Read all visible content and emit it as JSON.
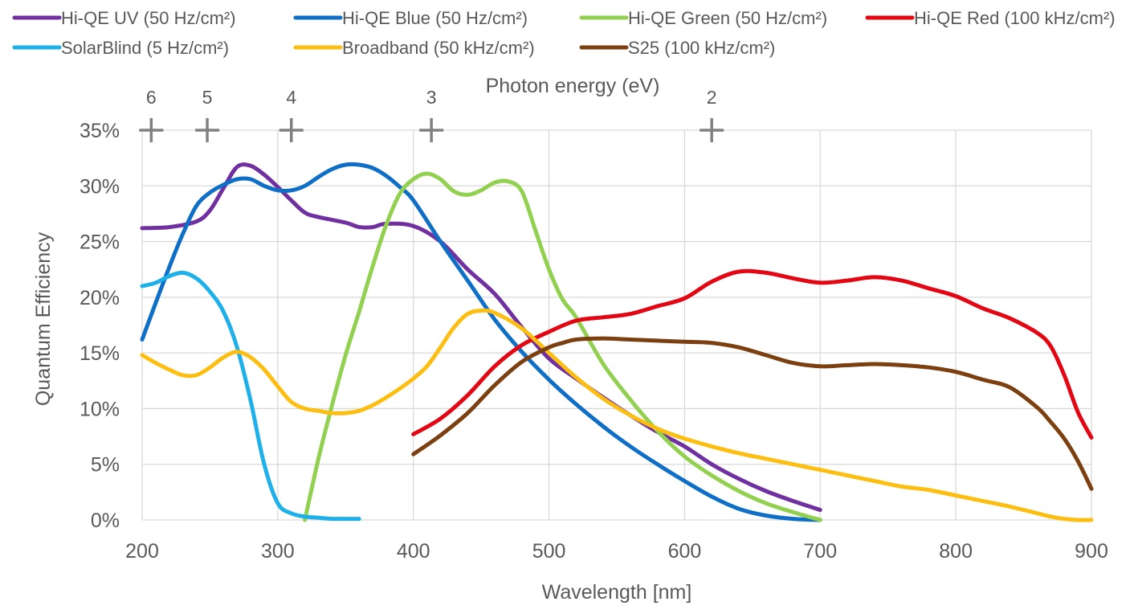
{
  "chart_data": {
    "type": "line",
    "xlabel": "Wavelength [nm]",
    "ylabel": "Quantum Efficiency",
    "top_axis_label": "Photon energy (eV)",
    "xlim": [
      200,
      900
    ],
    "ylim": [
      0,
      35
    ],
    "x_ticks": [
      200,
      300,
      400,
      500,
      600,
      700,
      800,
      900
    ],
    "x_tick_labels": [
      "200",
      "300",
      "400",
      "500",
      "600",
      "700",
      "800",
      "900"
    ],
    "y_ticks": [
      0,
      5,
      10,
      15,
      20,
      25,
      30,
      35
    ],
    "y_tick_labels": [
      "0%",
      "5%",
      "10%",
      "15%",
      "20%",
      "25%",
      "30%",
      "35%"
    ],
    "top_ticks": [
      {
        "label": "6",
        "ev": 6,
        "wavelength": 206.7
      },
      {
        "label": "5",
        "ev": 5,
        "wavelength": 248.0
      },
      {
        "label": "4",
        "ev": 4,
        "wavelength": 310.0
      },
      {
        "label": "3",
        "ev": 3,
        "wavelength": 413.3
      },
      {
        "label": "2",
        "ev": 2,
        "wavelength": 620.0
      }
    ],
    "grid": true,
    "legend_position": "top",
    "series": [
      {
        "name": "Hi-QE UV (50 Hz/cm²)",
        "color": "#7030A0",
        "x": [
          200,
          220,
          240,
          250,
          260,
          270,
          280,
          290,
          300,
          310,
          320,
          330,
          350,
          360,
          370,
          380,
          400,
          420,
          440,
          460,
          480,
          500,
          520,
          540,
          560,
          580,
          600,
          620,
          640,
          660,
          680,
          700
        ],
        "y": [
          26.2,
          26.3,
          26.8,
          27.8,
          29.8,
          31.7,
          31.8,
          31.0,
          29.9,
          28.7,
          27.6,
          27.2,
          26.7,
          26.3,
          26.3,
          26.6,
          26.4,
          25.0,
          22.5,
          20.3,
          17.3,
          14.5,
          12.7,
          11.0,
          9.4,
          7.9,
          6.6,
          5.0,
          3.7,
          2.6,
          1.7,
          0.9
        ]
      },
      {
        "name": "Hi-QE Blue (50 Hz/cm²)",
        "color": "#0F6FC6",
        "x": [
          200,
          210,
          220,
          230,
          240,
          250,
          260,
          270,
          280,
          290,
          300,
          310,
          320,
          330,
          340,
          350,
          360,
          370,
          380,
          390,
          400,
          420,
          440,
          460,
          480,
          500,
          520,
          540,
          560,
          580,
          600,
          620,
          640,
          660,
          680,
          700
        ],
        "y": [
          16.2,
          19.5,
          22.7,
          25.7,
          28.2,
          29.4,
          30.1,
          30.6,
          30.6,
          30.0,
          29.6,
          29.6,
          30.0,
          30.8,
          31.5,
          31.9,
          31.9,
          31.6,
          30.9,
          29.9,
          28.7,
          25.0,
          21.5,
          18.0,
          15.1,
          12.6,
          10.4,
          8.4,
          6.6,
          5.0,
          3.5,
          2.1,
          1.0,
          0.4,
          0.1,
          0.0
        ]
      },
      {
        "name": "Hi-QE Green (50 Hz/cm²)",
        "color": "#92D050",
        "x": [
          320,
          330,
          340,
          350,
          360,
          370,
          380,
          390,
          400,
          410,
          420,
          430,
          440,
          450,
          460,
          470,
          480,
          490,
          500,
          510,
          520,
          540,
          560,
          580,
          600,
          620,
          640,
          660,
          680,
          700
        ],
        "y": [
          0.0,
          5.5,
          10.3,
          14.8,
          18.7,
          22.8,
          26.5,
          29.3,
          30.6,
          31.1,
          30.6,
          29.5,
          29.2,
          29.6,
          30.3,
          30.4,
          29.5,
          26.0,
          22.5,
          19.8,
          18.2,
          14.0,
          10.8,
          8.0,
          5.7,
          4.0,
          2.6,
          1.5,
          0.7,
          0.0
        ]
      },
      {
        "name": "Hi-QE Red (100 kHz/cm²)",
        "color": "#E30613",
        "x": [
          400,
          420,
          440,
          460,
          480,
          500,
          520,
          540,
          560,
          580,
          600,
          620,
          640,
          660,
          680,
          700,
          720,
          740,
          760,
          780,
          800,
          820,
          840,
          860,
          870,
          880,
          890,
          900
        ],
        "y": [
          7.7,
          9.1,
          11.2,
          13.8,
          15.7,
          16.9,
          17.9,
          18.2,
          18.5,
          19.2,
          19.9,
          21.4,
          22.3,
          22.2,
          21.7,
          21.3,
          21.5,
          21.8,
          21.5,
          20.8,
          20.1,
          19.0,
          18.1,
          16.8,
          15.6,
          13.0,
          9.7,
          7.4
        ]
      },
      {
        "name": "SolarBlind (5 Hz/cm²)",
        "color": "#1EB0E8",
        "x": [
          200,
          210,
          220,
          230,
          240,
          250,
          260,
          270,
          280,
          290,
          300,
          310,
          320,
          330,
          340,
          350,
          360
        ],
        "y": [
          21.0,
          21.3,
          21.9,
          22.2,
          21.7,
          20.5,
          18.7,
          15.5,
          10.7,
          5.0,
          1.5,
          0.6,
          0.3,
          0.2,
          0.1,
          0.1,
          0.1
        ]
      },
      {
        "name": "Broadband (50 kHz/cm²)",
        "color": "#FDBE12",
        "x": [
          200,
          210,
          220,
          230,
          240,
          250,
          260,
          270,
          280,
          290,
          300,
          310,
          320,
          330,
          340,
          350,
          360,
          370,
          380,
          390,
          400,
          410,
          420,
          430,
          440,
          450,
          460,
          480,
          500,
          520,
          540,
          560,
          580,
          600,
          620,
          640,
          660,
          680,
          700,
          720,
          740,
          760,
          780,
          800,
          820,
          840,
          860,
          870,
          880,
          890,
          900
        ],
        "y": [
          14.8,
          14.1,
          13.5,
          13.0,
          13.0,
          13.7,
          14.6,
          15.1,
          14.6,
          13.5,
          12.0,
          10.6,
          10.0,
          9.8,
          9.6,
          9.6,
          9.8,
          10.3,
          11.0,
          11.8,
          12.7,
          13.8,
          15.5,
          17.3,
          18.5,
          18.8,
          18.6,
          17.2,
          15.0,
          12.8,
          10.9,
          9.4,
          8.2,
          7.3,
          6.6,
          6.0,
          5.5,
          5.0,
          4.5,
          4.0,
          3.5,
          3.0,
          2.7,
          2.2,
          1.7,
          1.2,
          0.6,
          0.3,
          0.1,
          0.0,
          0.0
        ]
      },
      {
        "name": "S25 (100 kHz/cm²)",
        "color": "#7B3F10",
        "x": [
          400,
          420,
          440,
          460,
          480,
          500,
          510,
          520,
          540,
          560,
          580,
          600,
          620,
          640,
          660,
          680,
          700,
          720,
          740,
          760,
          780,
          800,
          820,
          840,
          860,
          870,
          880,
          890,
          900
        ],
        "y": [
          5.9,
          7.6,
          9.6,
          12.1,
          14.2,
          15.5,
          15.9,
          16.2,
          16.3,
          16.2,
          16.1,
          16.0,
          15.9,
          15.5,
          14.8,
          14.1,
          13.8,
          13.9,
          14.0,
          13.9,
          13.7,
          13.3,
          12.6,
          11.9,
          10.1,
          8.8,
          7.3,
          5.3,
          2.8
        ]
      }
    ]
  }
}
